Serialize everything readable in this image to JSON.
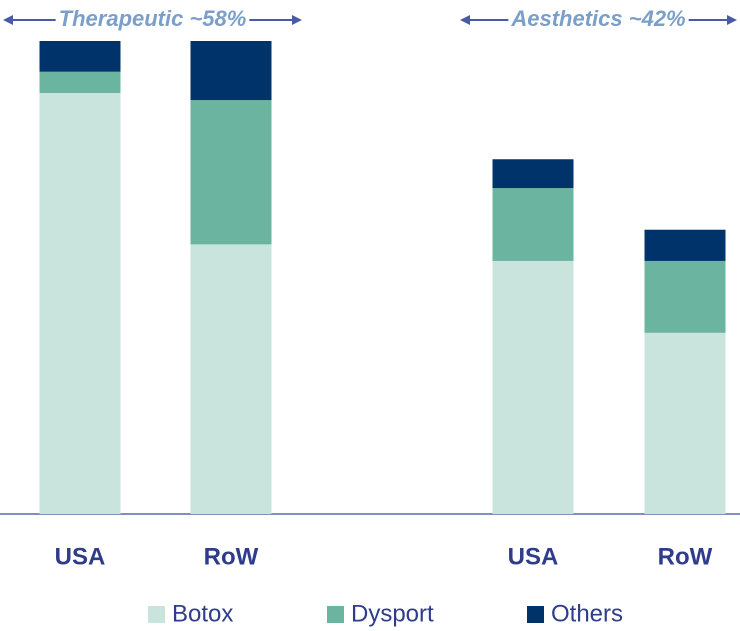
{
  "chart_data": {
    "type": "bar",
    "stacked": true,
    "categories": [
      "USA",
      "RoW",
      "USA",
      "RoW"
    ],
    "groups": [
      {
        "label": "Therapeutic ~58%"
      },
      {
        "label": "Aesthetics ~42%"
      }
    ],
    "series": [
      {
        "name": "Botox",
        "color": "#c8e4dc",
        "values": [
          89,
          57,
          53.5,
          38.3
        ]
      },
      {
        "name": "Dysport",
        "color": "#6bb5a0",
        "values": [
          4.5,
          30.5,
          15.4,
          15.2
        ]
      },
      {
        "name": "Others",
        "color": "#00336a",
        "values": [
          6.5,
          12.5,
          6.1,
          6.6
        ]
      }
    ],
    "ylim": [
      0,
      100
    ]
  }
}
